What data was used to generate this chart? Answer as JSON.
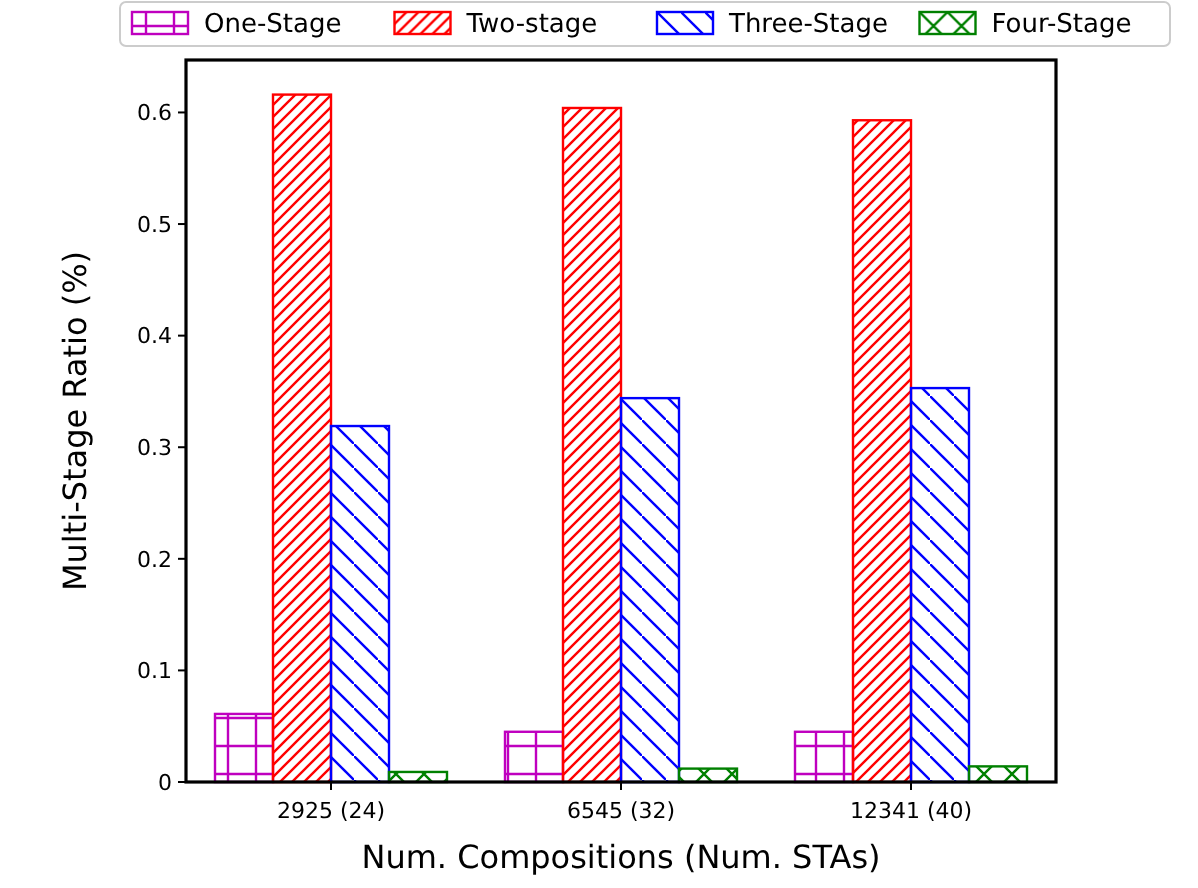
{
  "chart_data": {
    "type": "bar",
    "xlabel": "Num. Compositions (Num. STAs)",
    "ylabel": "Multi-Stage Ratio (%)",
    "categories": [
      "2925 (24)",
      "6545 (32)",
      "12341 (40)"
    ],
    "series": [
      {
        "name": "One-Stage",
        "color": "#bf00bf",
        "values": [
          0.061,
          0.045,
          0.045
        ]
      },
      {
        "name": "Two-stage",
        "color": "#ff0000",
        "values": [
          0.616,
          0.604,
          0.593
        ]
      },
      {
        "name": "Three-Stage",
        "color": "#0000ff",
        "values": [
          0.319,
          0.344,
          0.353
        ]
      },
      {
        "name": "Four-Stage",
        "color": "#008000",
        "values": [
          0.009,
          0.012,
          0.014
        ]
      }
    ],
    "ylim": [
      0,
      0.647
    ],
    "yticks": [
      0,
      0.1,
      0.2,
      0.3,
      0.4,
      0.5,
      0.6
    ],
    "grid": false,
    "legend": "top"
  }
}
